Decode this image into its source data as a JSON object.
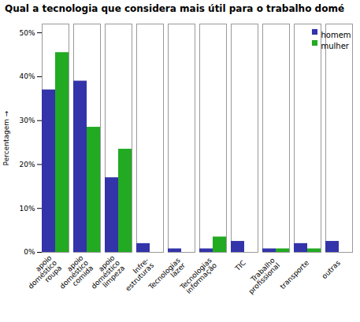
{
  "chart_data": {
    "type": "bar",
    "title": "Qual a tecnologia que considera mais útil para o trabalho domé",
    "ylabel": "Percentagem",
    "categories": [
      "apoio\ndoméstico\nroupa",
      "apoio\ndoméstico\ncomida",
      "apoio\ndoméstico\nlimpeza",
      "Infre-\nestruturas",
      "Tecnologias\nlazer",
      "Tecnologias\ninformação",
      "TIC",
      "Trabalho\nprofissional",
      "transporte",
      "outras"
    ],
    "series": [
      {
        "name": "homem",
        "color": "#3333AA",
        "values": [
          37.0,
          39.0,
          17.0,
          2.0,
          0.8,
          0.8,
          2.5,
          0.8,
          2.0,
          2.5
        ]
      },
      {
        "name": "mulher",
        "color": "#22AA22",
        "values": [
          45.5,
          28.5,
          23.5,
          0.0,
          0.0,
          3.5,
          0.0,
          0.8,
          0.8,
          0.0
        ]
      }
    ],
    "ylim": [
      0,
      52
    ],
    "yticks": [
      {
        "value": 0,
        "label": "0%"
      },
      {
        "value": 10,
        "label": "10%"
      },
      {
        "value": 20,
        "label": "20%"
      },
      {
        "value": 30,
        "label": "30%"
      },
      {
        "value": 40,
        "label": "40%"
      },
      {
        "value": 50,
        "label": "50%"
      }
    ],
    "legend": "upper right",
    "grid": false
  }
}
